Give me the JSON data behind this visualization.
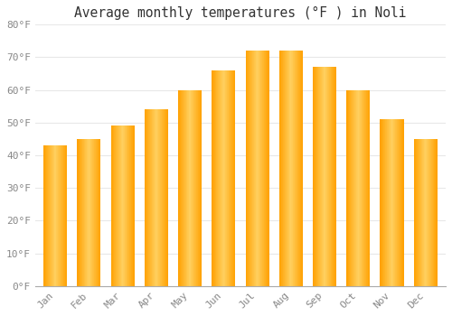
{
  "title": "Average monthly temperatures (°F ) in Noli",
  "months": [
    "Jan",
    "Feb",
    "Mar",
    "Apr",
    "May",
    "Jun",
    "Jul",
    "Aug",
    "Sep",
    "Oct",
    "Nov",
    "Dec"
  ],
  "values": [
    43,
    45,
    49,
    54,
    60,
    66,
    72,
    72,
    67,
    60,
    51,
    45
  ],
  "bar_color_center": "#FFD060",
  "bar_color_edge": "#FFA000",
  "background_color": "#FFFFFF",
  "grid_color": "#E8E8E8",
  "ylim": [
    0,
    80
  ],
  "yticks": [
    0,
    10,
    20,
    30,
    40,
    50,
    60,
    70,
    80
  ],
  "ytick_labels": [
    "0°F",
    "10°F",
    "20°F",
    "30°F",
    "40°F",
    "50°F",
    "60°F",
    "70°F",
    "80°F"
  ],
  "title_fontsize": 10.5,
  "tick_fontsize": 8,
  "bar_width": 0.7
}
